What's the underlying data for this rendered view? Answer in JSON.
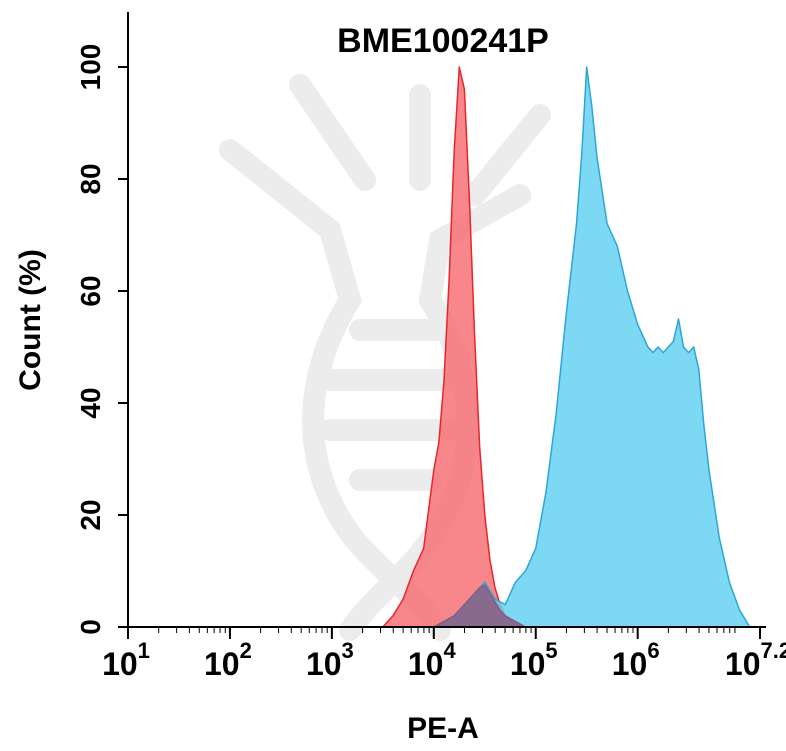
{
  "chart_data": {
    "type": "area",
    "title": "BME100241P",
    "xlabel": "PE-A",
    "ylabel": "Count (%)",
    "x_scale": "log",
    "xlim": [
      1,
      7.2
    ],
    "ylim": [
      0,
      100
    ],
    "grid": false,
    "legend": "none",
    "x_ticks": [
      {
        "base": "10",
        "exp": "1",
        "value": 1
      },
      {
        "base": "10",
        "exp": "2",
        "value": 2
      },
      {
        "base": "10",
        "exp": "3",
        "value": 3
      },
      {
        "base": "10",
        "exp": "4",
        "value": 4
      },
      {
        "base": "10",
        "exp": "5",
        "value": 5
      },
      {
        "base": "10",
        "exp": "6",
        "value": 6
      },
      {
        "base": "10",
        "exp": "7.2",
        "value": 7.2
      }
    ],
    "y_ticks": [
      "0",
      "20",
      "40",
      "60",
      "80",
      "100"
    ],
    "series": [
      {
        "color": "#f66c72",
        "stroke": "#e8252c",
        "x": [
          3.5,
          3.6,
          3.7,
          3.8,
          3.9,
          4.0,
          4.05,
          4.1,
          4.15,
          4.2,
          4.25,
          4.3,
          4.35,
          4.4,
          4.45,
          4.5,
          4.55,
          4.6,
          4.65,
          4.7,
          4.75,
          4.8,
          4.9
        ],
        "y": [
          0,
          2,
          5,
          10,
          14,
          28,
          33,
          44,
          62,
          85,
          100,
          96,
          76,
          52,
          32,
          20,
          12,
          7,
          4,
          2,
          1,
          0.5,
          0
        ]
      },
      {
        "color": "#60cff2",
        "stroke": "#2ca6d8",
        "x": [
          4.0,
          4.1,
          4.2,
          4.3,
          4.4,
          4.5,
          4.6,
          4.7,
          4.8,
          4.9,
          5.0,
          5.1,
          5.2,
          5.3,
          5.4,
          5.45,
          5.5,
          5.55,
          5.6,
          5.65,
          5.7,
          5.75,
          5.8,
          5.85,
          5.9,
          5.95,
          6.0,
          6.05,
          6.1,
          6.15,
          6.2,
          6.25,
          6.3,
          6.35,
          6.4,
          6.45,
          6.5,
          6.55,
          6.6,
          6.65,
          6.7,
          6.75,
          6.8,
          6.9,
          7.0,
          7.1,
          7.2
        ],
        "y": [
          0,
          1,
          2,
          4,
          6,
          8,
          5,
          4,
          8,
          10,
          14,
          24,
          38,
          56,
          72,
          84,
          100,
          93,
          84,
          78,
          72,
          70,
          68,
          64,
          60,
          57,
          54,
          52,
          50,
          49,
          50,
          49,
          50,
          51,
          55,
          50,
          49,
          50,
          46,
          36,
          28,
          22,
          16,
          8,
          3,
          0,
          0
        ]
      },
      {
        "color": "#8a5a80",
        "stroke": "#8a5a80",
        "x": [
          4.0,
          4.1,
          4.2,
          4.3,
          4.4,
          4.45,
          4.5,
          4.55,
          4.6,
          4.65,
          4.7,
          4.8,
          4.9
        ],
        "y": [
          0,
          1,
          2,
          4,
          6,
          7,
          7.5,
          6,
          4.5,
          3,
          2,
          1,
          0
        ]
      }
    ]
  }
}
